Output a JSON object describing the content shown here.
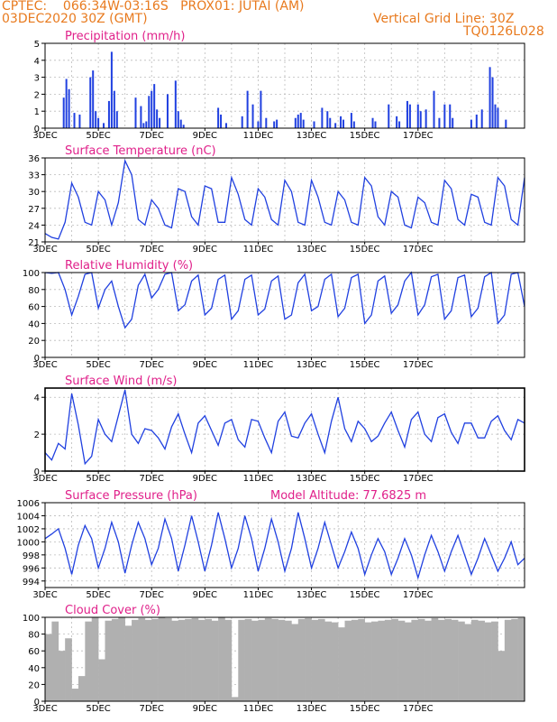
{
  "header": {
    "line1": "CPTEC:    066:34W-03:16S   PROX01: JUTAI (AM)",
    "line2_left": "03DEC2020 30Z (GMT)",
    "line2_right": "Vertical Grid Line: 30Z",
    "line3_right": "TQ0126L028"
  },
  "colors": {
    "line": "#2040e0",
    "title": "#e0208a",
    "header": "#e87a1e",
    "cloud": "#b0b0b0"
  },
  "x_labels": [
    "3DEC",
    "5DEC",
    "7DEC",
    "9DEC",
    "11DEC",
    "13DEC",
    "15DEC",
    "17DEC"
  ],
  "chart_data": [
    {
      "type": "bar",
      "title": "Precipitation (mm/h)",
      "ylim": [
        0,
        5
      ],
      "yticks": [
        0,
        1,
        2,
        3,
        4,
        5
      ],
      "x": [
        0.7,
        0.8,
        0.9,
        1.1,
        1.3,
        1.7,
        1.8,
        1.9,
        2.0,
        2.2,
        2.4,
        2.5,
        2.6,
        2.7,
        3.4,
        3.6,
        3.7,
        3.8,
        3.9,
        4.0,
        4.1,
        4.2,
        4.3,
        4.6,
        4.9,
        5.0,
        5.1,
        5.2,
        6.5,
        6.6,
        6.8,
        7.4,
        7.6,
        7.8,
        8.0,
        8.1,
        8.3,
        8.6,
        8.7,
        9.4,
        9.5,
        9.6,
        9.7,
        10.1,
        10.4,
        10.6,
        10.7,
        10.9,
        11.1,
        11.2,
        11.5,
        11.6,
        12.3,
        12.4,
        12.9,
        13.2,
        13.3,
        13.6,
        13.7,
        14.0,
        14.1,
        14.3,
        14.6,
        14.8,
        15.0,
        15.2,
        15.3,
        16.0,
        16.2,
        16.4,
        16.7,
        16.8,
        16.9,
        17.0,
        17.3
      ],
      "values": [
        1.8,
        2.9,
        2.3,
        0.9,
        0.8,
        3.0,
        3.4,
        1.0,
        0.6,
        0.3,
        1.6,
        4.5,
        2.2,
        1.0,
        1.8,
        1.3,
        0.3,
        0.4,
        1.9,
        2.2,
        2.6,
        1.1,
        0.6,
        2.0,
        2.8,
        1.0,
        0.5,
        0.2,
        1.2,
        0.8,
        0.3,
        0.7,
        2.2,
        1.4,
        0.4,
        2.2,
        0.6,
        0.4,
        0.5,
        0.6,
        0.8,
        0.9,
        0.5,
        0.4,
        1.2,
        1.0,
        0.6,
        0.3,
        0.7,
        0.5,
        0.9,
        0.4,
        0.6,
        0.4,
        1.4,
        0.7,
        0.4,
        1.6,
        1.4,
        1.4,
        1.0,
        1.1,
        2.2,
        0.6,
        1.4,
        1.4,
        0.6,
        0.5,
        0.8,
        1.1,
        3.6,
        3.0,
        1.4,
        1.2,
        0.5
      ]
    },
    {
      "type": "line",
      "title": "Surface Temperature (nC)",
      "ylim": [
        21,
        36
      ],
      "yticks": [
        21,
        24,
        27,
        30,
        33,
        36
      ],
      "x": [
        0.0,
        0.25,
        0.5,
        0.75,
        1.0,
        1.25,
        1.5,
        1.75,
        2.0,
        2.25,
        2.5,
        2.75,
        3.0,
        3.25,
        3.5,
        3.75,
        4.0,
        4.25,
        4.5,
        4.75,
        5.0,
        5.25,
        5.5,
        5.75,
        6.0,
        6.25,
        6.5,
        6.75,
        7.0,
        7.25,
        7.5,
        7.75,
        8.0,
        8.25,
        8.5,
        8.75,
        9.0,
        9.25,
        9.5,
        9.75,
        10.0,
        10.25,
        10.5,
        10.75,
        11.0,
        11.25,
        11.5,
        11.75,
        12.0,
        12.25,
        12.5,
        12.75,
        13.0,
        13.25,
        13.5,
        13.75,
        14.0,
        14.25,
        14.5,
        14.75,
        15.0,
        15.25,
        15.5,
        15.75,
        16.0,
        16.25,
        16.5,
        16.75,
        17.0,
        17.25,
        17.5,
        17.75,
        18.0
      ],
      "values": [
        22.5,
        21.8,
        21.5,
        24.5,
        31.5,
        29.0,
        24.5,
        24.0,
        30.0,
        28.5,
        24.0,
        28.0,
        35.5,
        33.0,
        25.0,
        24.0,
        28.5,
        27.0,
        24.0,
        23.5,
        30.5,
        30.0,
        25.5,
        24.0,
        31.0,
        30.5,
        24.5,
        24.5,
        32.5,
        29.5,
        25.0,
        24.0,
        30.5,
        29.0,
        25.0,
        24.0,
        32.0,
        30.0,
        24.5,
        24.0,
        32.0,
        29.0,
        24.5,
        24.0,
        30.0,
        28.5,
        24.5,
        24.0,
        32.5,
        31.0,
        25.5,
        24.0,
        30.0,
        29.0,
        24.0,
        23.5,
        29.0,
        28.0,
        24.5,
        24.0,
        32.0,
        30.5,
        25.0,
        24.0,
        29.5,
        29.0,
        24.5,
        24.0,
        32.5,
        31.0,
        25.0,
        24.0,
        32.5
      ]
    },
    {
      "type": "line",
      "title": "Relative Humidity (%)",
      "ylim": [
        0,
        100
      ],
      "yticks": [
        0,
        20,
        40,
        60,
        80,
        100
      ],
      "x": [
        0.0,
        0.25,
        0.5,
        0.75,
        1.0,
        1.25,
        1.5,
        1.75,
        2.0,
        2.25,
        2.5,
        2.75,
        3.0,
        3.25,
        3.5,
        3.75,
        4.0,
        4.25,
        4.5,
        4.75,
        5.0,
        5.25,
        5.5,
        5.75,
        6.0,
        6.25,
        6.5,
        6.75,
        7.0,
        7.25,
        7.5,
        7.75,
        8.0,
        8.25,
        8.5,
        8.75,
        9.0,
        9.25,
        9.5,
        9.75,
        10.0,
        10.25,
        10.5,
        10.75,
        11.0,
        11.25,
        11.5,
        11.75,
        12.0,
        12.25,
        12.5,
        12.75,
        13.0,
        13.25,
        13.5,
        13.75,
        14.0,
        14.25,
        14.5,
        14.75,
        15.0,
        15.25,
        15.5,
        15.75,
        16.0,
        16.25,
        16.5,
        16.75,
        17.0,
        17.25,
        17.5,
        17.75,
        18.0
      ],
      "values": [
        100,
        99,
        100,
        80,
        50,
        72,
        98,
        100,
        58,
        80,
        90,
        60,
        35,
        45,
        85,
        98,
        70,
        80,
        98,
        100,
        55,
        62,
        90,
        97,
        50,
        58,
        92,
        97,
        45,
        55,
        92,
        97,
        50,
        57,
        90,
        96,
        45,
        50,
        88,
        98,
        55,
        60,
        92,
        98,
        48,
        58,
        94,
        98,
        40,
        50,
        90,
        96,
        52,
        62,
        90,
        100,
        50,
        62,
        95,
        98,
        45,
        55,
        94,
        97,
        48,
        58,
        95,
        100,
        40,
        50,
        98,
        100,
        60
      ]
    },
    {
      "type": "line",
      "title": "Surface Wind (m/s)",
      "ylim": [
        0,
        4.5
      ],
      "yticks": [
        0,
        2,
        4
      ],
      "x": [
        0.0,
        0.25,
        0.5,
        0.75,
        1.0,
        1.25,
        1.5,
        1.75,
        2.0,
        2.25,
        2.5,
        2.75,
        3.0,
        3.25,
        3.5,
        3.75,
        4.0,
        4.25,
        4.5,
        4.75,
        5.0,
        5.25,
        5.5,
        5.75,
        6.0,
        6.25,
        6.5,
        6.75,
        7.0,
        7.25,
        7.5,
        7.75,
        8.0,
        8.25,
        8.5,
        8.75,
        9.0,
        9.25,
        9.5,
        9.75,
        10.0,
        10.25,
        10.5,
        10.75,
        11.0,
        11.25,
        11.5,
        11.75,
        12.0,
        12.25,
        12.5,
        12.75,
        13.0,
        13.25,
        13.5,
        13.75,
        14.0,
        14.25,
        14.5,
        14.75,
        15.0,
        15.25,
        15.5,
        15.75,
        16.0,
        16.25,
        16.5,
        16.75,
        17.0,
        17.25,
        17.5,
        17.75,
        18.0
      ],
      "values": [
        1.0,
        0.6,
        1.5,
        1.2,
        4.2,
        2.5,
        0.4,
        0.8,
        2.8,
        2.0,
        1.6,
        3.0,
        4.4,
        2.0,
        1.5,
        2.3,
        2.2,
        1.8,
        1.2,
        2.4,
        3.1,
        2.0,
        1.0,
        2.6,
        3.0,
        2.2,
        1.4,
        2.6,
        2.8,
        1.7,
        1.3,
        2.8,
        2.7,
        1.8,
        1.0,
        2.7,
        3.2,
        1.9,
        1.8,
        2.6,
        3.1,
        2.0,
        1.0,
        2.7,
        4.0,
        2.3,
        1.6,
        2.7,
        2.3,
        1.6,
        1.9,
        2.6,
        3.2,
        2.2,
        1.3,
        2.8,
        3.2,
        2.0,
        1.6,
        2.9,
        3.1,
        2.1,
        1.5,
        2.6,
        2.6,
        1.8,
        1.8,
        2.7,
        3.0,
        2.2,
        1.7,
        2.8,
        2.6
      ]
    },
    {
      "type": "line",
      "title": "Surface Pressure (hPa)",
      "annotation": "Model Altitude: 77.6825 m",
      "ylim": [
        993,
        1006
      ],
      "yticks": [
        994,
        996,
        998,
        1000,
        1002,
        1004,
        1006
      ],
      "x": [
        0.0,
        0.25,
        0.5,
        0.75,
        1.0,
        1.25,
        1.5,
        1.75,
        2.0,
        2.25,
        2.5,
        2.75,
        3.0,
        3.25,
        3.5,
        3.75,
        4.0,
        4.25,
        4.5,
        4.75,
        5.0,
        5.25,
        5.5,
        5.75,
        6.0,
        6.25,
        6.5,
        6.75,
        7.0,
        7.25,
        7.5,
        7.75,
        8.0,
        8.25,
        8.5,
        8.75,
        9.0,
        9.25,
        9.5,
        9.75,
        10.0,
        10.25,
        10.5,
        10.75,
        11.0,
        11.25,
        11.5,
        11.75,
        12.0,
        12.25,
        12.5,
        12.75,
        13.0,
        13.25,
        13.5,
        13.75,
        14.0,
        14.25,
        14.5,
        14.75,
        15.0,
        15.25,
        15.5,
        15.75,
        16.0,
        16.25,
        16.5,
        16.75,
        17.0,
        17.25,
        17.5,
        17.75,
        18.0
      ],
      "values": [
        1000.5,
        1001.2,
        1002.0,
        999.0,
        995.0,
        999.5,
        1002.5,
        1000.5,
        996.0,
        999.0,
        1003.0,
        1000.0,
        995.2,
        999.5,
        1003.0,
        1000.5,
        996.5,
        999.0,
        1003.5,
        1000.5,
        995.5,
        999.5,
        1004.0,
        1000.0,
        995.5,
        999.5,
        1004.5,
        1000.5,
        996.0,
        999.0,
        1004.0,
        1000.5,
        995.5,
        999.0,
        1003.5,
        1000.0,
        995.5,
        999.0,
        1004.5,
        1000.5,
        996.0,
        999.0,
        1003.0,
        999.5,
        996.0,
        998.5,
        1001.5,
        999.0,
        995.0,
        998.0,
        1000.5,
        998.5,
        995.0,
        997.5,
        1000.5,
        998.0,
        994.5,
        998.0,
        1001.0,
        998.5,
        995.5,
        998.5,
        1001.0,
        998.0,
        995.0,
        997.5,
        1000.5,
        998.0,
        995.5,
        997.5,
        1000.0,
        996.5,
        997.5
      ]
    },
    {
      "type": "area",
      "title": "Cloud Cover (%)",
      "ylim": [
        0,
        100
      ],
      "yticks": [
        0,
        20,
        40,
        60,
        80,
        100
      ],
      "x": [
        0.0,
        0.25,
        0.5,
        0.75,
        1.0,
        1.25,
        1.5,
        1.75,
        2.0,
        2.25,
        2.5,
        2.75,
        3.0,
        3.25,
        3.5,
        3.75,
        4.0,
        4.25,
        4.5,
        4.75,
        5.0,
        5.25,
        5.5,
        5.75,
        6.0,
        6.25,
        6.5,
        6.75,
        7.0,
        7.25,
        7.5,
        7.75,
        8.0,
        8.25,
        8.5,
        8.75,
        9.0,
        9.25,
        9.5,
        9.75,
        10.0,
        10.25,
        10.5,
        10.75,
        11.0,
        11.25,
        11.5,
        11.75,
        12.0,
        12.25,
        12.5,
        12.75,
        13.0,
        13.25,
        13.5,
        13.75,
        14.0,
        14.25,
        14.5,
        14.75,
        15.0,
        15.25,
        15.5,
        15.75,
        16.0,
        16.25,
        16.5,
        16.75,
        17.0,
        17.25,
        17.5,
        17.75,
        18.0
      ],
      "values": [
        80,
        95,
        60,
        75,
        15,
        30,
        95,
        100,
        50,
        96,
        98,
        100,
        90,
        97,
        99,
        97,
        98,
        100,
        99,
        96,
        97,
        98,
        99,
        97,
        98,
        96,
        100,
        97,
        5,
        97,
        98,
        96,
        97,
        99,
        98,
        97,
        96,
        92,
        98,
        99,
        97,
        98,
        95,
        94,
        88,
        96,
        97,
        98,
        94,
        95,
        96,
        97,
        98,
        96,
        94,
        97,
        98,
        96,
        99,
        97,
        98,
        97,
        95,
        92,
        97,
        96,
        94,
        95,
        60,
        97,
        98,
        99,
        96
      ]
    }
  ]
}
